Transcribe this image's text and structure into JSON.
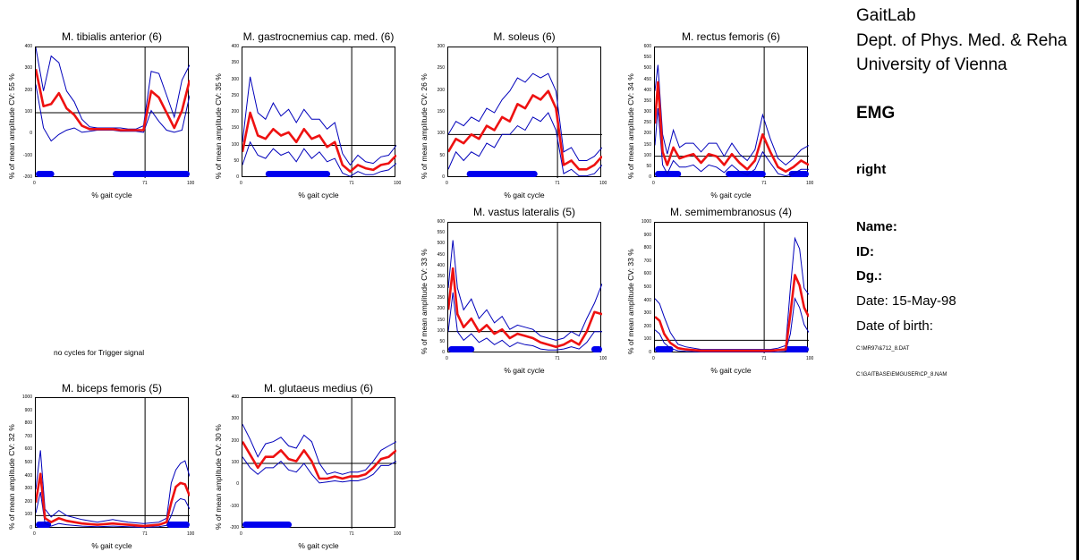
{
  "info": {
    "lab": "GaitLab",
    "dept": "Dept. of Phys. Med. & Reha",
    "univ": "University of Vienna",
    "mode": "EMG",
    "side": "right",
    "name_label": "Name:",
    "id_label": "ID:",
    "dg_label": "Dg.:",
    "date": "Date: 15-May-98",
    "dob": "Date of birth:",
    "file1": "C:\\MR97\\&712_8.DAT",
    "file2": "C:\\GAITBASE\\EMGUSER\\CP_8.NAM"
  },
  "no_cycles_note": "no cycles for Trigger signal",
  "colors": {
    "mean": "#ee1111",
    "band": "#0000bb",
    "onset": "#0000ee",
    "frame": "#000000"
  },
  "chart_data": [
    {
      "type": "line",
      "id": "tib",
      "title": "M. tibialis anterior (6)",
      "ylabel": "% of mean amplitude  CV: 55 %",
      "xlabel": "% gait cycle",
      "ylim": [
        -200,
        400
      ],
      "yticks": [
        -200,
        -100,
        0,
        100,
        200,
        300,
        400
      ],
      "xlim": [
        0,
        100
      ],
      "xticks": [
        "0",
        "71",
        "100"
      ],
      "toe_off": 71,
      "ref": 100,
      "x": [
        0,
        5,
        10,
        15,
        20,
        25,
        30,
        35,
        40,
        45,
        50,
        55,
        60,
        65,
        70,
        75,
        80,
        85,
        90,
        95,
        100
      ],
      "mean": [
        300,
        130,
        140,
        190,
        120,
        90,
        40,
        25,
        25,
        25,
        25,
        20,
        20,
        20,
        20,
        200,
        170,
        100,
        30,
        110,
        250
      ],
      "upper": [
        400,
        200,
        360,
        330,
        200,
        150,
        70,
        35,
        30,
        30,
        30,
        30,
        25,
        25,
        40,
        290,
        280,
        180,
        80,
        250,
        320
      ],
      "lower": [
        230,
        30,
        -30,
        0,
        20,
        30,
        10,
        15,
        20,
        20,
        20,
        15,
        15,
        15,
        10,
        110,
        60,
        20,
        10,
        20,
        180
      ],
      "onsets": [
        [
          0,
          12
        ],
        [
          50,
          100
        ]
      ]
    },
    {
      "type": "line",
      "id": "gas",
      "title": "M. gastrocnemius cap. med. (6)",
      "ylabel": "% of mean amplitude  CV: 35 %",
      "xlabel": "% gait cycle",
      "ylim": [
        0,
        400
      ],
      "yticks": [
        0,
        50,
        100,
        150,
        200,
        250,
        300,
        350,
        400
      ],
      "xlim": [
        0,
        100
      ],
      "xticks": [
        "0",
        "71",
        "100"
      ],
      "toe_off": 71,
      "ref": 100,
      "x": [
        0,
        5,
        10,
        15,
        20,
        25,
        30,
        35,
        40,
        45,
        50,
        55,
        60,
        65,
        70,
        75,
        80,
        85,
        90,
        95,
        100
      ],
      "mean": [
        80,
        200,
        130,
        120,
        150,
        130,
        140,
        110,
        150,
        120,
        130,
        95,
        110,
        40,
        20,
        40,
        30,
        25,
        40,
        45,
        70
      ],
      "upper": [
        110,
        310,
        200,
        180,
        230,
        190,
        210,
        170,
        210,
        180,
        180,
        150,
        170,
        75,
        40,
        70,
        50,
        45,
        65,
        70,
        100
      ],
      "lower": [
        40,
        110,
        70,
        60,
        90,
        70,
        80,
        50,
        90,
        60,
        80,
        50,
        60,
        15,
        5,
        20,
        10,
        10,
        20,
        25,
        45
      ],
      "onsets": [
        [
          15,
          57
        ]
      ]
    },
    {
      "type": "line",
      "id": "sol",
      "title": "M. soleus (6)",
      "ylabel": "% of mean amplitude  CV: 26 %",
      "xlabel": "% gait cycle",
      "ylim": [
        0,
        300
      ],
      "yticks": [
        0,
        50,
        100,
        150,
        200,
        250,
        300
      ],
      "xlim": [
        0,
        100
      ],
      "xticks": [
        "0",
        "71",
        "100"
      ],
      "toe_off": 71,
      "ref": 100,
      "x": [
        0,
        5,
        10,
        15,
        20,
        25,
        30,
        35,
        40,
        45,
        50,
        55,
        60,
        65,
        70,
        75,
        80,
        85,
        90,
        95,
        100
      ],
      "mean": [
        60,
        90,
        80,
        100,
        90,
        120,
        110,
        140,
        130,
        170,
        160,
        190,
        180,
        200,
        160,
        30,
        40,
        20,
        20,
        30,
        50
      ],
      "upper": [
        100,
        130,
        120,
        140,
        130,
        160,
        150,
        180,
        200,
        230,
        220,
        240,
        230,
        240,
        200,
        60,
        70,
        40,
        40,
        50,
        70
      ],
      "lower": [
        20,
        60,
        40,
        60,
        50,
        80,
        70,
        100,
        100,
        120,
        110,
        140,
        130,
        150,
        110,
        10,
        20,
        5,
        5,
        10,
        30
      ],
      "onsets": [
        [
          12,
          58
        ]
      ]
    },
    {
      "type": "line",
      "id": "rec",
      "title": "M. rectus femoris (6)",
      "ylabel": "% of mean amplitude  CV: 34 %",
      "xlabel": "% gait cycle",
      "ylim": [
        0,
        600
      ],
      "yticks": [
        0,
        50,
        100,
        150,
        200,
        250,
        300,
        350,
        400,
        450,
        500,
        550,
        600
      ],
      "xlim": [
        0,
        100
      ],
      "xticks": [
        "0",
        "71",
        "100"
      ],
      "toe_off": 71,
      "ref": 100,
      "x": [
        0,
        2,
        5,
        8,
        12,
        16,
        20,
        25,
        30,
        35,
        40,
        45,
        50,
        55,
        60,
        65,
        70,
        75,
        80,
        85,
        90,
        95,
        100
      ],
      "mean": [
        250,
        440,
        120,
        60,
        140,
        90,
        100,
        110,
        70,
        110,
        100,
        60,
        110,
        70,
        40,
        80,
        200,
        120,
        50,
        30,
        50,
        80,
        60
      ],
      "upper": [
        400,
        520,
        200,
        110,
        220,
        140,
        160,
        160,
        120,
        160,
        160,
        100,
        160,
        110,
        80,
        130,
        290,
        180,
        90,
        60,
        90,
        130,
        150
      ],
      "lower": [
        150,
        320,
        60,
        20,
        80,
        50,
        50,
        60,
        30,
        60,
        50,
        25,
        60,
        30,
        15,
        40,
        120,
        70,
        20,
        10,
        20,
        40,
        40
      ],
      "onsets": [
        [
          0,
          17
        ],
        [
          46,
          72
        ],
        [
          87,
          100
        ]
      ]
    },
    {
      "type": "line",
      "id": "vas",
      "title": "M. vastus lateralis (5)",
      "ylabel": "% of mean amplitude  CV: 33 %",
      "xlabel": "% gait cycle",
      "ylim": [
        0,
        600
      ],
      "yticks": [
        0,
        50,
        100,
        150,
        200,
        250,
        300,
        350,
        400,
        450,
        500,
        550,
        600
      ],
      "xlim": [
        0,
        100
      ],
      "xticks": [
        "0",
        "71",
        "100"
      ],
      "toe_off": 71,
      "ref": 100,
      "x": [
        0,
        3,
        6,
        10,
        15,
        20,
        25,
        30,
        35,
        40,
        45,
        50,
        55,
        60,
        65,
        70,
        75,
        80,
        85,
        90,
        95,
        100
      ],
      "mean": [
        200,
        390,
        180,
        120,
        160,
        100,
        130,
        90,
        110,
        70,
        90,
        80,
        70,
        50,
        40,
        30,
        40,
        60,
        40,
        100,
        190,
        180
      ],
      "upper": [
        300,
        520,
        300,
        200,
        250,
        160,
        200,
        140,
        170,
        110,
        130,
        120,
        110,
        80,
        70,
        60,
        70,
        100,
        80,
        160,
        230,
        320
      ],
      "lower": [
        100,
        280,
        100,
        60,
        90,
        50,
        70,
        40,
        60,
        30,
        50,
        40,
        35,
        20,
        15,
        15,
        20,
        30,
        20,
        50,
        100,
        100
      ],
      "onsets": [
        [
          0,
          17
        ],
        [
          93,
          100
        ]
      ]
    },
    {
      "type": "line",
      "id": "sem",
      "title": "M. semimembranosus (4)",
      "ylabel": "% of mean amplitude  CV: 33 %",
      "xlabel": "% gait cycle",
      "ylim": [
        0,
        1000
      ],
      "yticks": [
        0,
        100,
        200,
        300,
        400,
        500,
        600,
        700,
        800,
        900,
        1000
      ],
      "xlim": [
        0,
        100
      ],
      "xticks": [
        "0",
        "71",
        "100"
      ],
      "toe_off": 71,
      "ref": 100,
      "x": [
        0,
        3,
        6,
        10,
        15,
        20,
        30,
        40,
        50,
        60,
        70,
        75,
        80,
        85,
        88,
        91,
        94,
        97,
        100
      ],
      "mean": [
        280,
        250,
        150,
        80,
        40,
        30,
        20,
        20,
        20,
        20,
        20,
        20,
        25,
        30,
        300,
        600,
        520,
        350,
        280
      ],
      "upper": [
        420,
        380,
        280,
        160,
        70,
        50,
        30,
        30,
        30,
        30,
        30,
        30,
        40,
        60,
        500,
        880,
        800,
        500,
        450
      ],
      "lower": [
        180,
        150,
        80,
        40,
        20,
        15,
        10,
        10,
        10,
        10,
        10,
        10,
        10,
        15,
        150,
        420,
        350,
        220,
        160
      ],
      "onsets": [
        [
          0,
          12
        ],
        [
          84,
          100
        ]
      ]
    },
    {
      "type": "line",
      "id": "bic",
      "title": "M. biceps femoris (5)",
      "ylabel": "% of mean amplitude  CV: 32 %",
      "xlabel": "% gait cycle",
      "ylim": [
        0,
        1000
      ],
      "yticks": [
        0,
        100,
        200,
        300,
        400,
        500,
        600,
        700,
        800,
        900,
        1000
      ],
      "xlim": [
        0,
        100
      ],
      "xticks": [
        "0",
        "71",
        "100"
      ],
      "toe_off": 71,
      "ref": 100,
      "x": [
        0,
        3,
        6,
        10,
        15,
        20,
        30,
        40,
        50,
        60,
        70,
        80,
        85,
        88,
        91,
        94,
        97,
        100
      ],
      "mean": [
        200,
        420,
        80,
        50,
        80,
        60,
        40,
        30,
        40,
        30,
        20,
        30,
        50,
        200,
        320,
        350,
        340,
        250
      ],
      "upper": [
        300,
        600,
        150,
        90,
        140,
        100,
        70,
        50,
        70,
        50,
        40,
        50,
        80,
        350,
        450,
        500,
        520,
        400
      ],
      "lower": [
        120,
        280,
        40,
        20,
        40,
        30,
        20,
        15,
        20,
        15,
        10,
        15,
        25,
        100,
        200,
        230,
        220,
        150
      ],
      "onsets": [
        [
          0,
          10
        ],
        [
          85,
          100
        ]
      ]
    },
    {
      "type": "line",
      "id": "glu",
      "title": "M. glutaeus medius (6)",
      "ylabel": "% of mean amplitude  CV: 30 %",
      "xlabel": "% gait cycle",
      "ylim": [
        -200,
        400
      ],
      "yticks": [
        -200,
        -100,
        0,
        100,
        200,
        300,
        400
      ],
      "xlim": [
        0,
        100
      ],
      "xticks": [
        "0",
        "71",
        "100"
      ],
      "toe_off": 71,
      "ref": 100,
      "x": [
        0,
        5,
        10,
        15,
        20,
        25,
        30,
        35,
        40,
        45,
        50,
        55,
        60,
        65,
        70,
        75,
        80,
        85,
        90,
        95,
        100
      ],
      "mean": [
        200,
        140,
        80,
        130,
        130,
        160,
        120,
        110,
        160,
        110,
        30,
        30,
        40,
        30,
        40,
        40,
        50,
        80,
        120,
        130,
        160
      ],
      "upper": [
        280,
        210,
        130,
        190,
        200,
        220,
        180,
        170,
        230,
        200,
        100,
        50,
        60,
        50,
        60,
        60,
        70,
        110,
        160,
        180,
        200
      ],
      "lower": [
        130,
        80,
        50,
        80,
        80,
        110,
        70,
        60,
        100,
        50,
        10,
        15,
        20,
        15,
        20,
        20,
        30,
        50,
        90,
        90,
        110
      ],
      "onsets": [
        [
          0,
          32
        ]
      ]
    }
  ]
}
